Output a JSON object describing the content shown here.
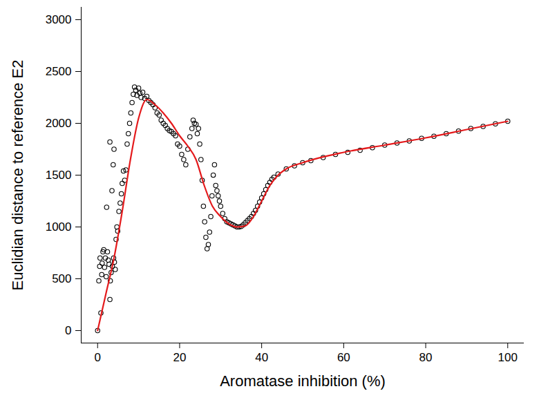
{
  "chart_data": {
    "type": "scatter",
    "x_label": "Aromatase inhibition (%)",
    "y_label": "Euclidian distance to reference E2",
    "xlim": [
      -4,
      104
    ],
    "ylim": [
      -120,
      3120
    ],
    "xticks": [
      0,
      20,
      40,
      60,
      80,
      100
    ],
    "yticks": [
      0,
      500,
      1000,
      1500,
      2000,
      2500,
      3000
    ],
    "grid": false,
    "series": [
      {
        "type": "scatter",
        "color": "#000000",
        "marker": "circle",
        "x": [
          0,
          0.3,
          0.5,
          0.6,
          0.8,
          1,
          1.1,
          1.3,
          1.5,
          1.7,
          1.9,
          2.1,
          2.2,
          2.4,
          2.6,
          2.8,
          3,
          3,
          3.1,
          3.3,
          3.5,
          3.6,
          3.8,
          3.9,
          4,
          4.1,
          4.3,
          4.5,
          4.7,
          4.9,
          5.2,
          5.5,
          5.8,
          6,
          6.3,
          6.6,
          6.9,
          7.2,
          7.5,
          7.8,
          8.1,
          8.4,
          8.7,
          9,
          9.3,
          9.6,
          10,
          10.3,
          10.6,
          11,
          11.5,
          12,
          12.5,
          13,
          13.5,
          14,
          14.5,
          15,
          15.5,
          16,
          16.5,
          17,
          17.5,
          18,
          18.5,
          19,
          19.5,
          20,
          20.5,
          21,
          21.5,
          22,
          22.5,
          23,
          23.3,
          23.6,
          24,
          24.3,
          24.6,
          24.9,
          25.2,
          25.5,
          25.8,
          26.1,
          26.4,
          26.7,
          27,
          27.3,
          27.6,
          27.9,
          28.2,
          28.5,
          28.8,
          29.1,
          29.4,
          29.7,
          30,
          30.5,
          31,
          31.5,
          32,
          32.5,
          33,
          33.5,
          34,
          34.5,
          35,
          35.5,
          36,
          36.5,
          37,
          37.5,
          38,
          38.5,
          39,
          39.5,
          40,
          40.5,
          41,
          41.5,
          42,
          42.5,
          43,
          44,
          46,
          48,
          50,
          52,
          55,
          58,
          61,
          64,
          67,
          70,
          73,
          76,
          79,
          82,
          85,
          88,
          91,
          94,
          97,
          100
        ],
        "values": [
          0,
          480,
          620,
          700,
          170,
          540,
          650,
          760,
          780,
          610,
          700,
          520,
          1190,
          760,
          680,
          640,
          300,
          1820,
          480,
          560,
          1350,
          620,
          1600,
          700,
          1750,
          660,
          590,
          880,
          1000,
          960,
          1150,
          1230,
          1320,
          1420,
          1540,
          1450,
          1550,
          1800,
          1900,
          2000,
          2100,
          2200,
          2280,
          2350,
          2320,
          2270,
          2340,
          2290,
          2250,
          2300,
          2240,
          2260,
          2220,
          2200,
          2180,
          2150,
          2100,
          2080,
          2030,
          2000,
          1980,
          1950,
          1930,
          1920,
          1900,
          1880,
          1800,
          1780,
          1700,
          1650,
          1600,
          1750,
          1870,
          1950,
          2030,
          2000,
          1990,
          1900,
          1950,
          1800,
          1650,
          1450,
          1200,
          1050,
          900,
          790,
          830,
          950,
          1100,
          1300,
          1500,
          1600,
          1400,
          1350,
          1300,
          1250,
          1200,
          1130,
          1080,
          1050,
          1040,
          1030,
          1020,
          1010,
          1000,
          1000,
          1005,
          1020,
          1040,
          1060,
          1080,
          1100,
          1130,
          1160,
          1200,
          1240,
          1280,
          1320,
          1360,
          1400,
          1430,
          1460,
          1480,
          1510,
          1560,
          1590,
          1620,
          1640,
          1670,
          1700,
          1720,
          1740,
          1765,
          1790,
          1810,
          1830,
          1855,
          1875,
          1900,
          1925,
          1950,
          1970,
          1995,
          2020
        ]
      },
      {
        "type": "line",
        "color": "#e41a1c",
        "line_style": "solid",
        "x": [
          0,
          2,
          4,
          6,
          8,
          10,
          12,
          14,
          16,
          18,
          20,
          22,
          24,
          26,
          28,
          30,
          32,
          34,
          36,
          38,
          40,
          42,
          44,
          46,
          50,
          60,
          70,
          80,
          90,
          100
        ],
        "values": [
          0,
          350,
          700,
          1150,
          1650,
          2050,
          2230,
          2180,
          2100,
          2000,
          1880,
          1780,
          1650,
          1400,
          1200,
          1100,
          1030,
          1000,
          1010,
          1100,
          1250,
          1400,
          1500,
          1560,
          1620,
          1720,
          1790,
          1860,
          1940,
          2020
        ]
      }
    ]
  }
}
